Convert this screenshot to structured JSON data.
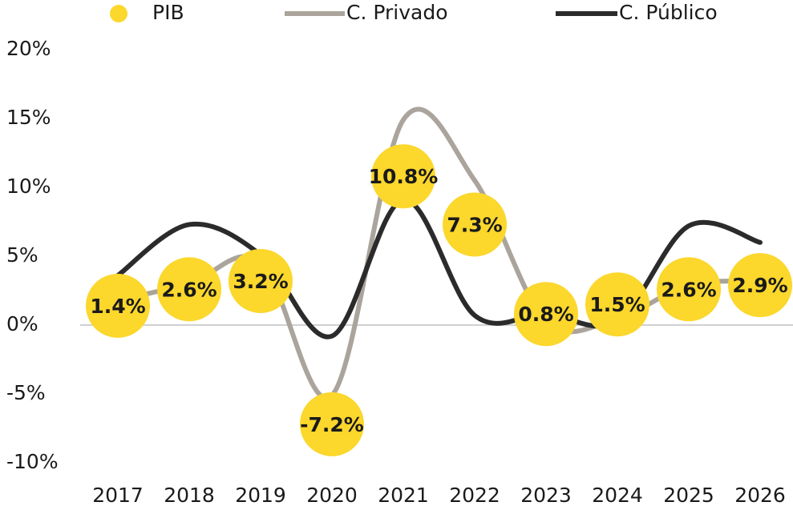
{
  "chart_data": {
    "type": "line",
    "categories": [
      "2017",
      "2018",
      "2019",
      "2020",
      "2021",
      "2022",
      "2023",
      "2024",
      "2025",
      "2026"
    ],
    "series": [
      {
        "name": "PIB",
        "color": "#fcd72c",
        "values": [
          1.4,
          2.6,
          3.2,
          -7.2,
          10.8,
          7.3,
          0.8,
          1.5,
          2.6,
          2.9
        ],
        "value_labels": [
          "1.4%",
          "2.6%",
          "3.2%",
          "-7.2%",
          "10.8%",
          "7.3%",
          "0.8%",
          "1.5%",
          "2.6%",
          "2.9%"
        ]
      },
      {
        "name": "C. Privado",
        "color": "#aaa49c",
        "values": [
          1.8,
          3.0,
          4.6,
          -5.1,
          14.9,
          10.5,
          0.3,
          0.5,
          2.9,
          3.2
        ]
      },
      {
        "name": "C. Público",
        "color": "#2b2b2b",
        "values": [
          3.6,
          7.3,
          5.1,
          -0.8,
          9.1,
          0.7,
          0.8,
          0.3,
          7.2,
          6.0
        ]
      }
    ],
    "ylim": [
      -10,
      20
    ],
    "yticks": [
      {
        "value": 20,
        "label": "20%"
      },
      {
        "value": 15,
        "label": "15%"
      },
      {
        "value": 10,
        "label": "10%"
      },
      {
        "value": 5,
        "label": "5%"
      },
      {
        "value": 0,
        "label": "0%"
      },
      {
        "value": -5,
        "label": "-5%"
      },
      {
        "value": -10,
        "label": "-10%"
      }
    ],
    "grid": false,
    "legend": "top"
  }
}
